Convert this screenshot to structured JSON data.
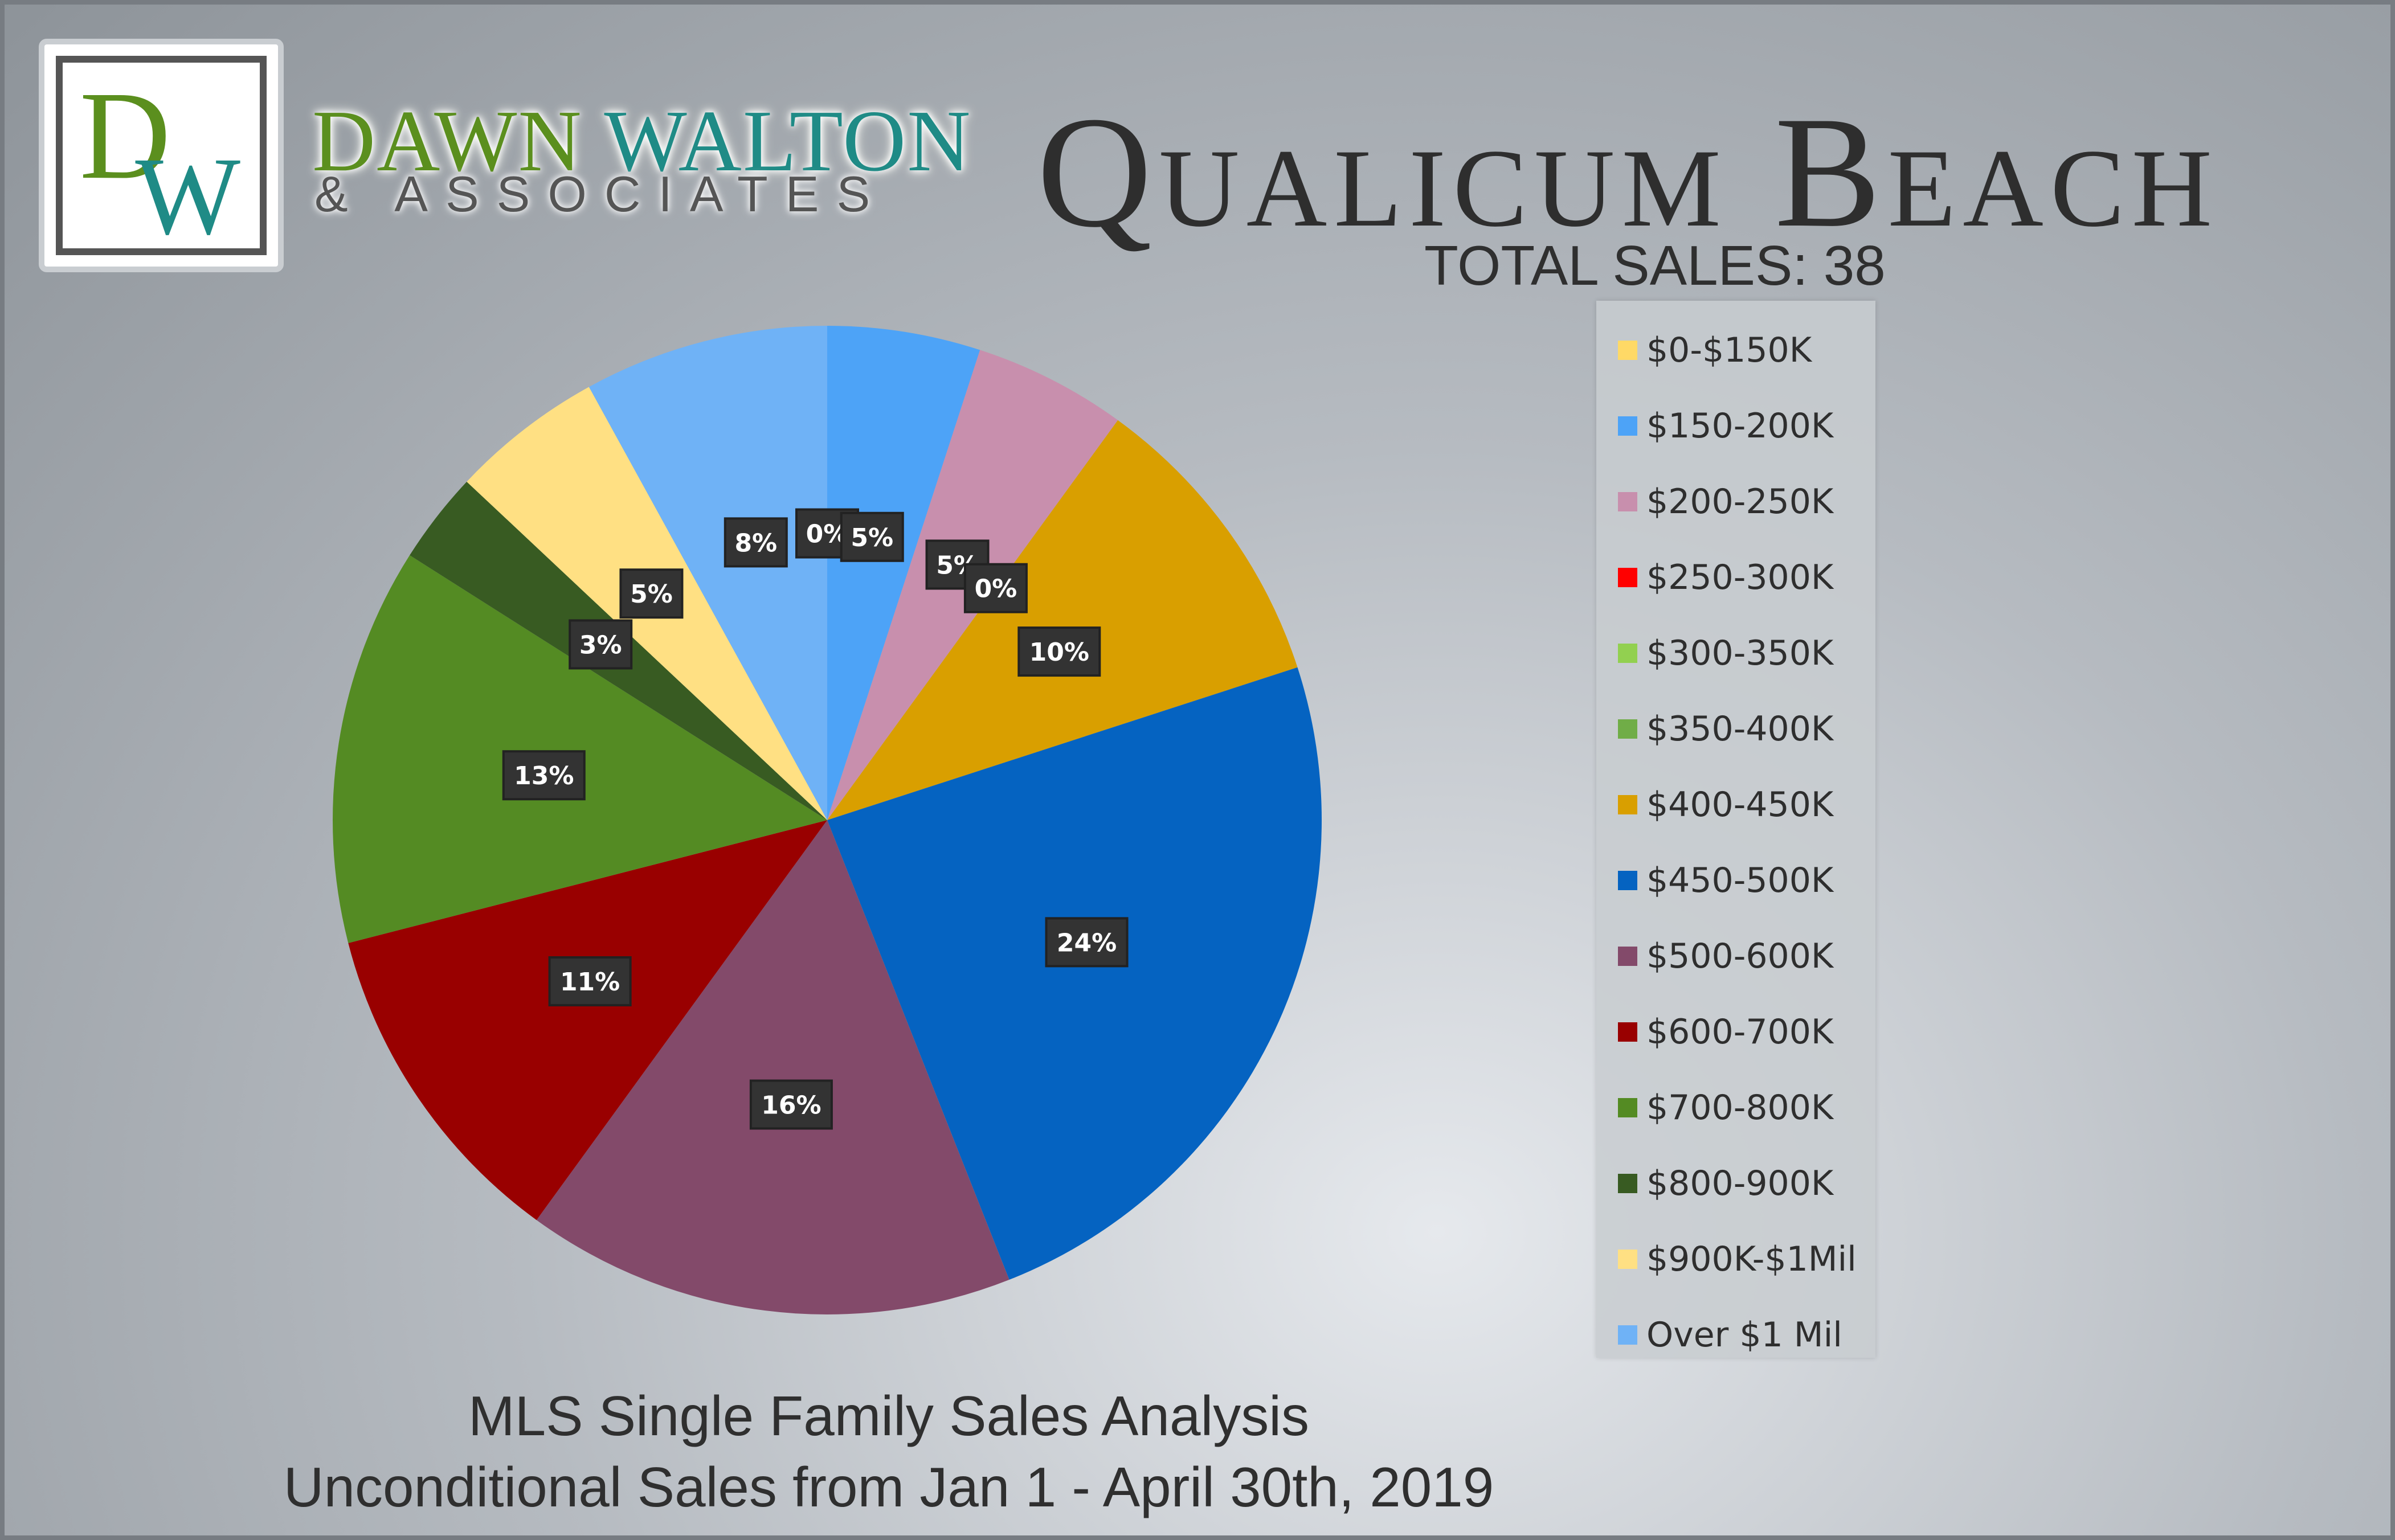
{
  "brand": {
    "logo_letters": "DW",
    "name_part1": "DAWN",
    "name_part2": "WALTON",
    "subtitle": "& ASSOCIATES"
  },
  "header": {
    "title": "Qualicum Beach",
    "total_sales": "TOTAL SALES: 38"
  },
  "footer": {
    "line1": "MLS Single Family Sales Analysis",
    "line2": "Unconditional Sales from Jan 1 - April 30th, 2019"
  },
  "chart_data": {
    "type": "pie",
    "title": "Qualicum Beach",
    "categories": [
      "$0-$150K",
      "$150-200K",
      "$200-250K",
      "$250-300K",
      "$300-350K",
      "$350-400K",
      "$400-450K",
      "$450-500K",
      "$500-600K",
      "$600-700K",
      "$700-800K",
      "$800-900K",
      "$900K-$1Mil",
      "Over $1 Mil"
    ],
    "values": [
      0,
      5,
      5,
      0,
      0,
      0,
      10,
      24,
      16,
      11,
      13,
      3,
      5,
      8
    ],
    "data_labels": [
      "0%",
      "5%",
      "5%",
      "0%",
      "",
      "",
      "10%",
      "24%",
      "16%",
      "11%",
      "13%",
      "3%",
      "5%",
      "8%"
    ],
    "colors": [
      "#ffd966",
      "#4da3f7",
      "#c88fad",
      "#ff0000",
      "#92d050",
      "#70ad47",
      "#d99f00",
      "#0563c1",
      "#834a6a",
      "#990000",
      "#548b23",
      "#385b22",
      "#ffe083",
      "#6fb2f6"
    ],
    "legend_position": "right",
    "start_angle_deg": 0,
    "direction": "clockwise"
  }
}
